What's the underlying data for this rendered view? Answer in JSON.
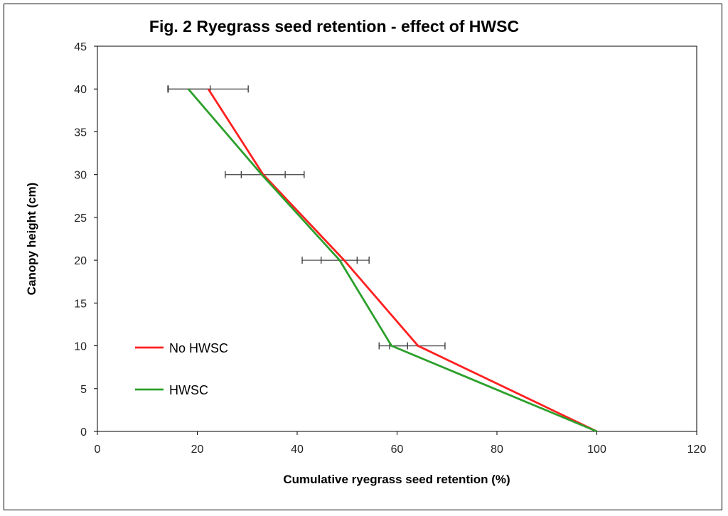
{
  "chart_data": {
    "type": "line",
    "title": "Fig. 2 Ryegrass seed retention - effect of HWSC",
    "xlabel": "Cumulative ryegrass seed retention (%)",
    "ylabel": "Canopy height (cm)",
    "xlim": [
      0,
      120
    ],
    "ylim": [
      0,
      45
    ],
    "xticks": [
      0,
      20,
      40,
      60,
      80,
      100,
      120
    ],
    "yticks": [
      0,
      5,
      10,
      15,
      20,
      25,
      30,
      35,
      40,
      45
    ],
    "grid": false,
    "legend": "left-bottom",
    "series": [
      {
        "name": "No HWSC",
        "color": "#ff2020",
        "points": [
          {
            "x": 22.2,
            "y": 40
          },
          {
            "x": 33.2,
            "y": 30
          },
          {
            "x": 49.4,
            "y": 20
          },
          {
            "x": 64.2,
            "y": 10
          },
          {
            "x": 100,
            "y": 0
          }
        ],
        "error_x": [
          [
            14.2,
            30.2
          ],
          [
            28.8,
            37.6
          ],
          [
            41.0,
            54.4
          ],
          [
            58.5,
            69.6
          ],
          null
        ]
      },
      {
        "name": "HWSC",
        "color": "#2ca02c",
        "points": [
          {
            "x": 18.2,
            "y": 40
          },
          {
            "x": 32.9,
            "y": 30
          },
          {
            "x": 48.5,
            "y": 20
          },
          {
            "x": 58.9,
            "y": 10
          },
          {
            "x": 100,
            "y": 0
          }
        ],
        "error_x": [
          [
            14.1,
            22.6
          ],
          [
            25.6,
            41.4
          ],
          [
            44.8,
            52.0
          ],
          [
            56.4,
            62.1
          ],
          null
        ]
      }
    ]
  }
}
